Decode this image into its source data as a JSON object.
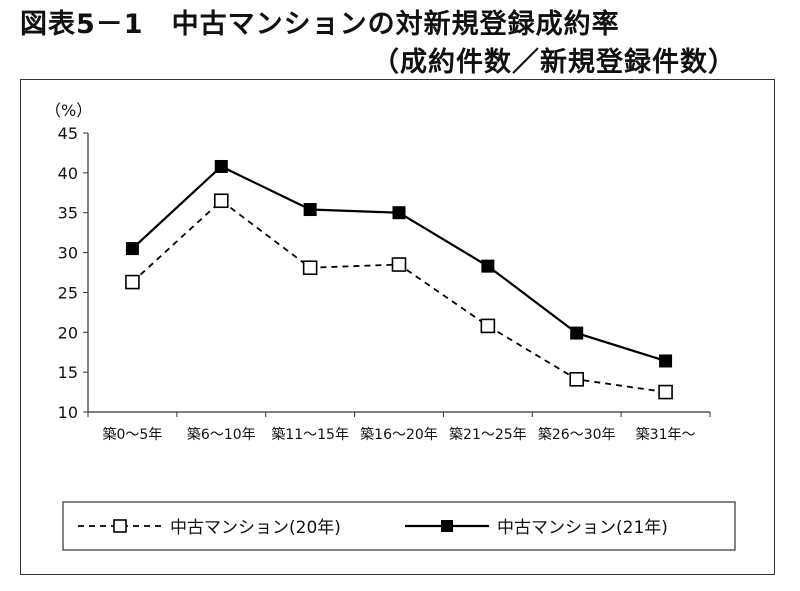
{
  "title": "図表5－1　中古マンションの対新規登録成約率",
  "subtitle": "（成約件数／新規登録件数）",
  "chart_data": {
    "type": "line",
    "ylabel": "（%）",
    "ylim": [
      10,
      45
    ],
    "yticks": [
      10,
      15,
      20,
      25,
      30,
      35,
      40,
      45
    ],
    "categories": [
      "築0～5年",
      "築6～10年",
      "築11～15年",
      "築16～20年",
      "築21～25年",
      "築26～30年",
      "築31年～"
    ],
    "series": [
      {
        "name": "中古マンション(20年)",
        "values": [
          26.3,
          36.5,
          28.1,
          28.5,
          20.8,
          14.1,
          12.5
        ],
        "line": "dashed",
        "marker": "open-square",
        "color": "#000000"
      },
      {
        "name": "中古マンション(21年)",
        "values": [
          30.5,
          40.8,
          35.4,
          35.0,
          28.3,
          19.9,
          16.4
        ],
        "line": "solid",
        "marker": "filled-square",
        "color": "#000000"
      }
    ],
    "grid": false,
    "legend": "bottom"
  }
}
